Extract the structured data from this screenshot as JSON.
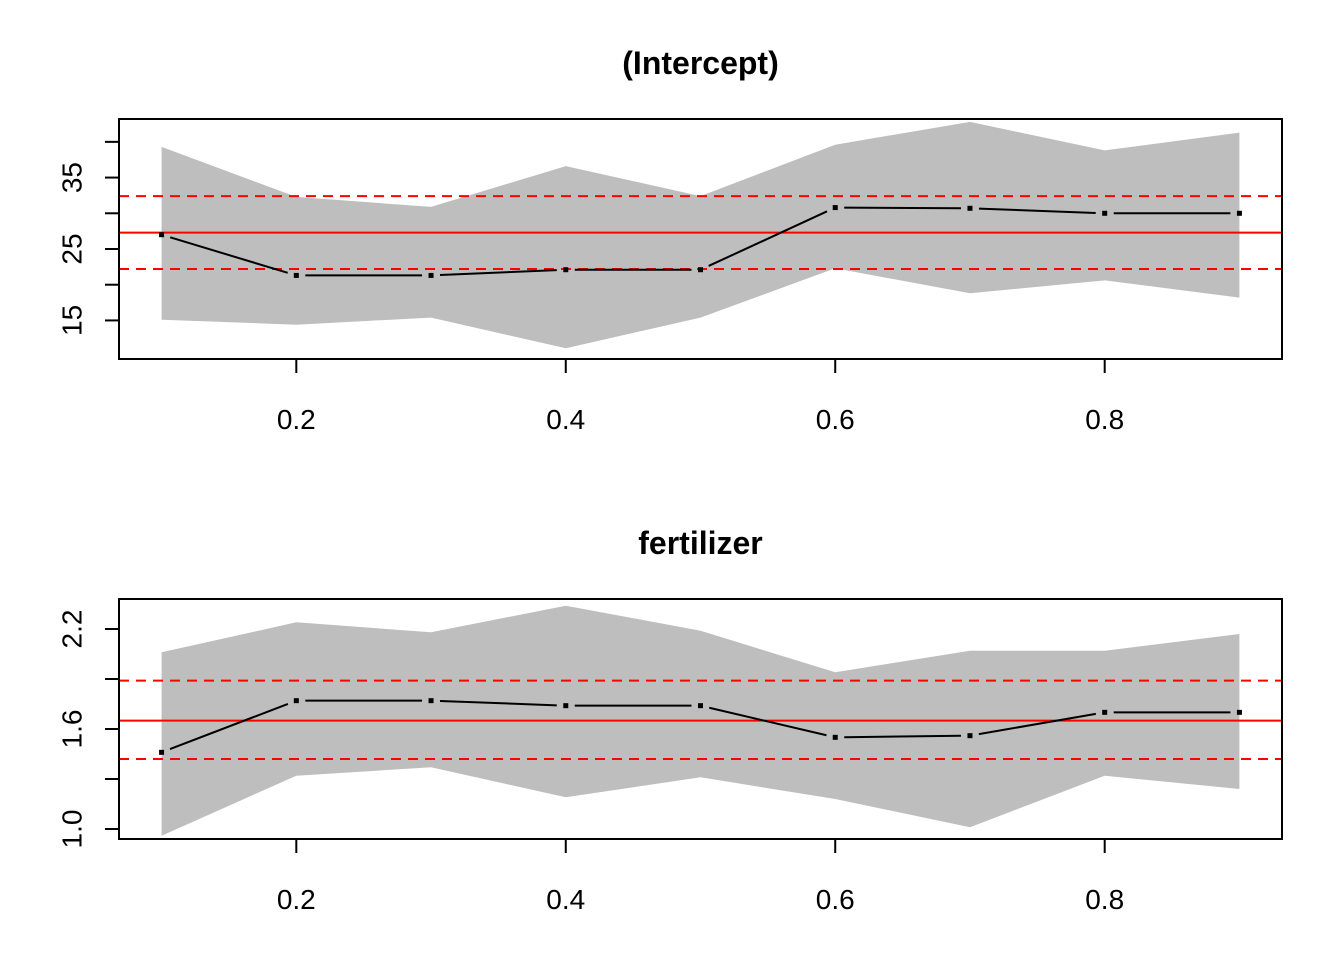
{
  "chart_data": [
    {
      "type": "line",
      "title": "(Intercept)",
      "xlabel": "",
      "ylabel": "",
      "x": [
        0.1,
        0.2,
        0.3,
        0.4,
        0.5,
        0.6,
        0.7,
        0.8,
        0.9
      ],
      "xlim": [
        0.0684,
        0.9316
      ],
      "ylim": [
        9.6,
        43.2
      ],
      "xticks": [
        "0.2",
        "0.4",
        "0.6",
        "0.8"
      ],
      "xtick_values": [
        0.2,
        0.4,
        0.6,
        0.8
      ],
      "yticks": [
        "15",
        "25",
        "35"
      ],
      "ytick_values": [
        15,
        25,
        35
      ],
      "yticks_minor": [
        20,
        30,
        40
      ],
      "estimate": [
        27.0,
        21.3,
        21.3,
        22.1,
        22.1,
        30.8,
        30.7,
        30.0,
        30.0
      ],
      "ci_lower": [
        15.1,
        14.4,
        15.4,
        11.1,
        15.4,
        22.3,
        18.8,
        20.6,
        18.2
      ],
      "ci_upper": [
        39.3,
        32.3,
        30.9,
        36.6,
        32.4,
        39.6,
        42.8,
        38.8,
        41.3
      ],
      "reference_line": 27.3,
      "reference_ci": [
        22.2,
        32.4
      ],
      "colors": {
        "band": "#bebebe",
        "estimate": "#000000",
        "reference": "#ff0000"
      }
    },
    {
      "type": "line",
      "title": "fertilizer",
      "xlabel": "",
      "ylabel": "",
      "x": [
        0.1,
        0.2,
        0.3,
        0.4,
        0.5,
        0.6,
        0.7,
        0.8,
        0.9
      ],
      "xlim": [
        0.0684,
        0.9316
      ],
      "ylim": [
        0.94,
        2.38
      ],
      "xticks": [
        "0.2",
        "0.4",
        "0.6",
        "0.8"
      ],
      "xtick_values": [
        0.2,
        0.4,
        0.6,
        0.8
      ],
      "yticks": [
        "1.0",
        "1.6",
        "2.2"
      ],
      "ytick_values": [
        1.0,
        1.6,
        2.2
      ],
      "yticks_minor": [
        1.3,
        1.9
      ],
      "estimate": [
        1.46,
        1.77,
        1.77,
        1.74,
        1.74,
        1.55,
        1.56,
        1.7,
        1.7
      ],
      "ci_lower": [
        0.96,
        1.32,
        1.37,
        1.19,
        1.31,
        1.18,
        1.01,
        1.32,
        1.24
      ],
      "ci_upper": [
        2.06,
        2.24,
        2.18,
        2.34,
        2.19,
        1.94,
        2.07,
        2.07,
        2.17
      ],
      "reference_line": 1.65,
      "reference_ci": [
        1.42,
        1.89
      ],
      "colors": {
        "band": "#bebebe",
        "estimate": "#000000",
        "reference": "#ff0000"
      }
    }
  ]
}
